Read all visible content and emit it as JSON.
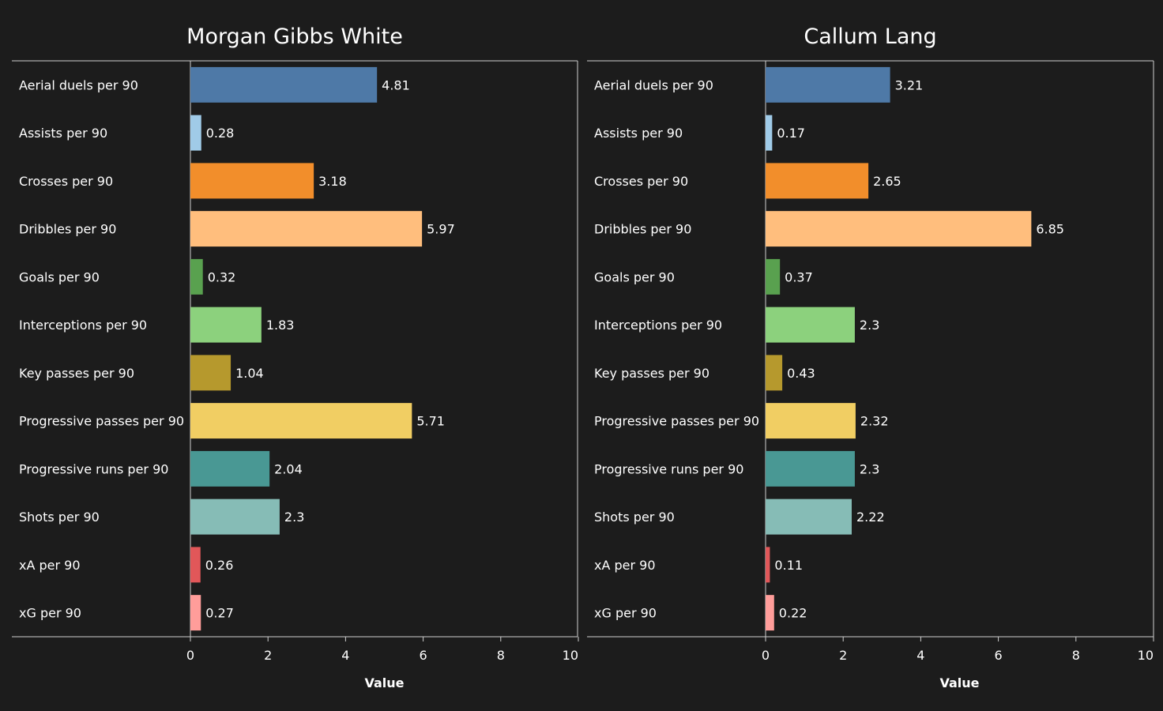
{
  "background": "#1c1c1c",
  "text_color": "#ffffff",
  "chart_data": [
    {
      "type": "bar",
      "orientation": "horizontal",
      "title": "Morgan Gibbs White",
      "xlabel": "Value",
      "ylabel": "",
      "xlim": [
        0,
        10
      ],
      "xticks": [
        0,
        2,
        4,
        6,
        8,
        10
      ],
      "grid": false,
      "categories": [
        "Aerial duels per 90",
        "Assists per 90",
        "Crosses per 90",
        "Dribbles per 90",
        "Goals per 90",
        "Interceptions per 90",
        "Key passes per 90",
        "Progressive passes per 90",
        "Progressive runs per 90",
        "Shots per 90",
        "xA per 90",
        "xG per 90"
      ],
      "values": [
        4.81,
        0.28,
        3.18,
        5.97,
        0.32,
        1.83,
        1.04,
        5.71,
        2.04,
        2.3,
        0.26,
        0.27
      ],
      "value_labels": [
        "4.81",
        "0.28",
        "3.18",
        "5.97",
        "0.32",
        "1.83",
        "1.04",
        "5.71",
        "2.04",
        "2.3",
        "0.26",
        "0.27"
      ],
      "colors": [
        "#4e79a7",
        "#a0cbe8",
        "#f28e2b",
        "#ffbe7d",
        "#59a14f",
        "#8cd17d",
        "#b6992d",
        "#f1ce63",
        "#499894",
        "#86bcb6",
        "#e15759",
        "#ff9d9a"
      ]
    },
    {
      "type": "bar",
      "orientation": "horizontal",
      "title": "Callum Lang",
      "xlabel": "Value",
      "ylabel": "",
      "xlim": [
        0,
        10
      ],
      "xticks": [
        0,
        2,
        4,
        6,
        8,
        10
      ],
      "grid": false,
      "categories": [
        "Aerial duels per 90",
        "Assists per 90",
        "Crosses per 90",
        "Dribbles per 90",
        "Goals per 90",
        "Interceptions per 90",
        "Key passes per 90",
        "Progressive passes per 90",
        "Progressive runs per 90",
        "Shots per 90",
        "xA per 90",
        "xG per 90"
      ],
      "values": [
        3.21,
        0.17,
        2.65,
        6.85,
        0.37,
        2.3,
        0.43,
        2.32,
        2.3,
        2.22,
        0.11,
        0.22
      ],
      "value_labels": [
        "3.21",
        "0.17",
        "2.65",
        "6.85",
        "0.37",
        "2.3",
        "0.43",
        "2.32",
        "2.3",
        "2.22",
        "0.11",
        "0.22"
      ],
      "colors": [
        "#4e79a7",
        "#a0cbe8",
        "#f28e2b",
        "#ffbe7d",
        "#59a14f",
        "#8cd17d",
        "#b6992d",
        "#f1ce63",
        "#499894",
        "#86bcb6",
        "#e15759",
        "#ff9d9a"
      ]
    }
  ]
}
